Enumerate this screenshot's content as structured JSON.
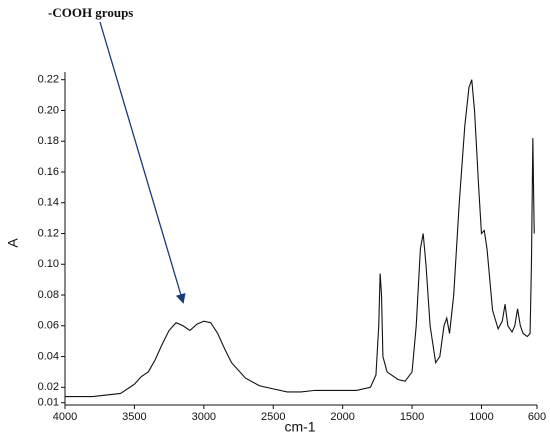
{
  "chart_data": {
    "type": "line",
    "annotation": "-COOH groups",
    "x_label": "cm-1",
    "y_label": "A",
    "color": "#111111",
    "x": [
      4000,
      3800,
      3600,
      3500,
      3450,
      3400,
      3350,
      3300,
      3250,
      3200,
      3150,
      3100,
      3050,
      3000,
      2950,
      2900,
      2850,
      2800,
      2700,
      2600,
      2500,
      2400,
      2300,
      2200,
      2100,
      2000,
      1900,
      1800,
      1760,
      1740,
      1730,
      1720,
      1710,
      1680,
      1600,
      1550,
      1500,
      1470,
      1440,
      1420,
      1400,
      1370,
      1330,
      1300,
      1270,
      1250,
      1230,
      1200,
      1160,
      1120,
      1090,
      1070,
      1050,
      1020,
      1000,
      980,
      960,
      920,
      880,
      850,
      830,
      810,
      780,
      760,
      740,
      720,
      700,
      670,
      650,
      640,
      630,
      620
    ],
    "values": [
      0.014,
      0.014,
      0.016,
      0.022,
      0.027,
      0.03,
      0.038,
      0.048,
      0.057,
      0.062,
      0.06,
      0.057,
      0.061,
      0.063,
      0.062,
      0.055,
      0.045,
      0.036,
      0.026,
      0.021,
      0.019,
      0.017,
      0.017,
      0.018,
      0.018,
      0.018,
      0.018,
      0.02,
      0.028,
      0.06,
      0.094,
      0.08,
      0.04,
      0.03,
      0.025,
      0.024,
      0.03,
      0.06,
      0.11,
      0.12,
      0.1,
      0.06,
      0.036,
      0.04,
      0.06,
      0.065,
      0.055,
      0.08,
      0.14,
      0.19,
      0.215,
      0.22,
      0.2,
      0.15,
      0.12,
      0.122,
      0.11,
      0.07,
      0.058,
      0.063,
      0.074,
      0.06,
      0.056,
      0.06,
      0.071,
      0.06,
      0.055,
      0.053,
      0.055,
      0.1,
      0.182,
      0.12
    ],
    "xlim": [
      4000,
      600
    ],
    "xticks": [
      4000,
      3500,
      3000,
      2500,
      2000,
      1500,
      1000,
      600
    ],
    "ylim": [
      0.0085,
      0.225
    ],
    "yticks": [
      0.01,
      0.02,
      0.04,
      0.06,
      0.08,
      {
        "value": 0.1,
        "label": "0.10"
      },
      0.12,
      0.14,
      0.16,
      0.18,
      {
        "value": 0.2,
        "label": "0.20"
      },
      0.22
    ]
  }
}
